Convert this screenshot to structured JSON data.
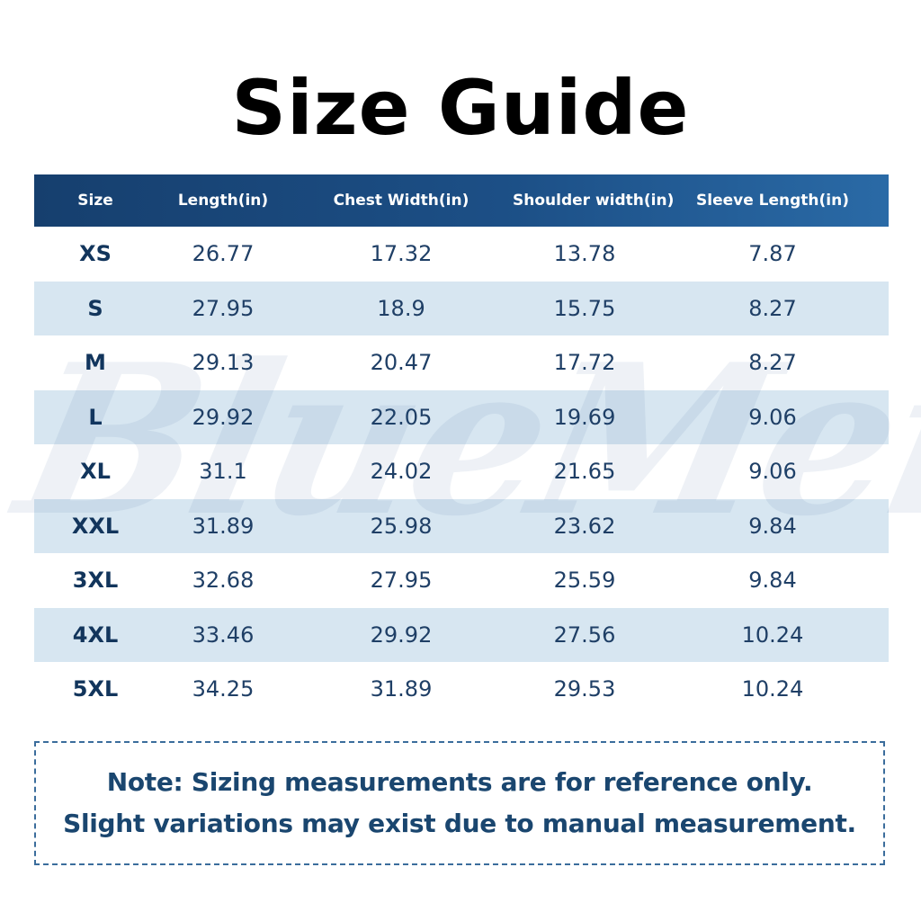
{
  "title": "Size Guide",
  "watermark": "BlueMere",
  "colors": {
    "header_start": "#163f6e",
    "header_end": "#2a6aa6",
    "stripe": "#d7e6f1",
    "text": "#1f3f66",
    "note_border": "#3b6d9c"
  },
  "table": {
    "headers": [
      "Size",
      "Length(in)",
      "Chest Width(in)",
      "Shoulder width(in)",
      "Sleeve Length(in)"
    ],
    "rows": [
      [
        "XS",
        "26.77",
        "17.32",
        "13.78",
        "7.87"
      ],
      [
        "S",
        "27.95",
        "18.9",
        "15.75",
        "8.27"
      ],
      [
        "M",
        "29.13",
        "20.47",
        "17.72",
        "8.27"
      ],
      [
        "L",
        "29.92",
        "22.05",
        "19.69",
        "9.06"
      ],
      [
        "XL",
        "31.1",
        "24.02",
        "21.65",
        "9.06"
      ],
      [
        "XXL",
        "31.89",
        "25.98",
        "23.62",
        "9.84"
      ],
      [
        "3XL",
        "32.68",
        "27.95",
        "25.59",
        "9.84"
      ],
      [
        "4XL",
        "33.46",
        "29.92",
        "27.56",
        "10.24"
      ],
      [
        "5XL",
        "34.25",
        "31.89",
        "29.53",
        "10.24"
      ]
    ]
  },
  "note": {
    "line1": "Note: Sizing measurements are for reference only.",
    "line2": "Slight variations may exist due to manual measurement."
  }
}
